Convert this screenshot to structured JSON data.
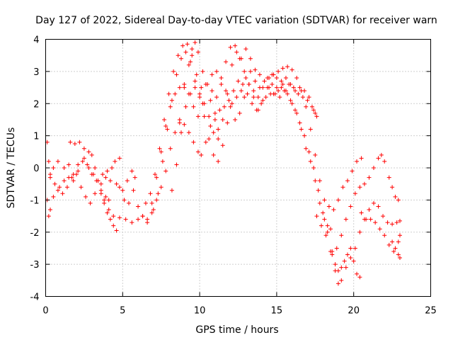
{
  "chart_data": {
    "type": "scatter",
    "title": "Day 127 of 2022, Sidereal Day-to-day VTEC variation (SDTVAR) for receiver warn",
    "xlabel": "GPS time / hours",
    "ylabel": "SDTVAR / TECUs",
    "xlim": [
      0,
      25
    ],
    "ylim": [
      -4,
      4
    ],
    "xticks": [
      0,
      5,
      10,
      15,
      20,
      25
    ],
    "yticks": [
      -4,
      -3,
      -2,
      -1,
      0,
      1,
      2,
      3,
      4
    ],
    "xtick_labels": [
      "0",
      "5",
      "10",
      "15",
      "20",
      "25"
    ],
    "ytick_labels": [
      "-4",
      "-3",
      "-2",
      "-1",
      "0",
      "1",
      "2",
      "3",
      "4"
    ],
    "grid": true,
    "marker": "plus",
    "color": "#ff0000",
    "tracks": [
      [
        [
          0.1,
          0.8
        ],
        [
          0.2,
          0.2
        ],
        [
          0.3,
          -0.3
        ],
        [
          0.5,
          0.0
        ],
        [
          0.8,
          0.2
        ],
        [
          1.2,
          0.0
        ],
        [
          1.5,
          0.1
        ],
        [
          1.8,
          -0.2
        ],
        [
          2.1,
          0.1
        ],
        [
          2.5,
          0.3
        ],
        [
          2.8,
          0.0
        ],
        [
          3.1,
          -0.2
        ],
        [
          3.4,
          -0.4
        ],
        [
          3.7,
          -0.2
        ],
        [
          4.0,
          -0.1
        ],
        [
          4.3,
          0.0
        ],
        [
          4.5,
          0.2
        ],
        [
          4.8,
          0.3
        ]
      ],
      [
        [
          0.1,
          -1.0
        ],
        [
          0.2,
          -1.5
        ],
        [
          0.3,
          -1.3
        ],
        [
          0.5,
          -0.9
        ],
        [
          0.8,
          -0.7
        ],
        [
          1.1,
          -0.8
        ],
        [
          1.4,
          -0.6
        ],
        [
          1.7,
          -0.3
        ],
        [
          2.0,
          -0.2
        ],
        [
          2.3,
          -0.6
        ],
        [
          2.6,
          -0.9
        ],
        [
          2.9,
          -1.1
        ],
        [
          3.2,
          -0.8
        ],
        [
          3.6,
          -0.5
        ],
        [
          3.9,
          -0.3
        ],
        [
          4.2,
          -0.4
        ],
        [
          4.6,
          -0.5
        ],
        [
          5.0,
          -0.7
        ],
        [
          5.3,
          -0.4
        ],
        [
          5.6,
          -0.1
        ],
        [
          5.8,
          -0.3
        ]
      ],
      [
        [
          1.6,
          0.8
        ],
        [
          1.9,
          0.75
        ],
        [
          2.2,
          0.8
        ],
        [
          2.5,
          0.6
        ],
        [
          2.8,
          0.5
        ],
        [
          3.0,
          0.4
        ],
        [
          3.2,
          0.0
        ],
        [
          3.4,
          -0.4
        ],
        [
          3.6,
          -0.8
        ],
        [
          3.8,
          -1.1
        ],
        [
          4.0,
          -1.4
        ],
        [
          4.2,
          -1.6
        ],
        [
          4.4,
          -1.8
        ],
        [
          4.6,
          -1.95
        ]
      ],
      [
        [
          0.3,
          -0.2
        ],
        [
          0.6,
          -0.5
        ],
        [
          0.9,
          -0.6
        ],
        [
          1.2,
          -0.4
        ],
        [
          1.5,
          -0.3
        ],
        [
          1.8,
          -0.4
        ],
        [
          2.1,
          -0.1
        ],
        [
          2.4,
          0.2
        ],
        [
          2.7,
          0.1
        ],
        [
          3.0,
          -0.2
        ],
        [
          3.3,
          -0.4
        ],
        [
          3.6,
          -0.7
        ],
        [
          3.9,
          -0.9
        ],
        [
          4.1,
          -1.0
        ]
      ],
      [
        [
          3.8,
          -1.0
        ],
        [
          4.1,
          -1.3
        ],
        [
          4.4,
          -1.5
        ],
        [
          4.8,
          -1.55
        ],
        [
          5.2,
          -1.6
        ],
        [
          5.6,
          -1.7
        ],
        [
          6.0,
          -1.6
        ],
        [
          6.3,
          -1.5
        ],
        [
          6.6,
          -1.6
        ],
        [
          6.9,
          -1.4
        ],
        [
          7.2,
          -1.0
        ],
        [
          7.5,
          -0.6
        ],
        [
          7.8,
          -0.1
        ],
        [
          8.1,
          0.6
        ],
        [
          8.4,
          1.1
        ],
        [
          8.7,
          1.4
        ],
        [
          9.0,
          1.35
        ],
        [
          9.3,
          1.1
        ],
        [
          9.6,
          0.8
        ],
        [
          9.9,
          0.5
        ],
        [
          10.1,
          0.4
        ],
        [
          10.4,
          0.8
        ],
        [
          10.7,
          1.3
        ],
        [
          11.0,
          1.7
        ],
        [
          11.3,
          1.8
        ],
        [
          11.6,
          1.9
        ],
        [
          11.9,
          2.1
        ],
        [
          12.2,
          2.4
        ],
        [
          12.5,
          2.7
        ],
        [
          12.8,
          2.6
        ],
        [
          13.1,
          2.3
        ],
        [
          13.4,
          2.0
        ],
        [
          13.7,
          1.8
        ],
        [
          14.0,
          2.0
        ],
        [
          14.3,
          2.2
        ],
        [
          14.6,
          2.3
        ],
        [
          14.9,
          2.3
        ],
        [
          15.2,
          2.2
        ],
        [
          15.5,
          2.4
        ],
        [
          15.8,
          2.6
        ],
        [
          16.1,
          2.5
        ],
        [
          16.4,
          2.3
        ],
        [
          16.7,
          2.2
        ],
        [
          17.0,
          2.1
        ],
        [
          17.3,
          1.9
        ],
        [
          17.5,
          1.7
        ]
      ],
      [
        [
          4.8,
          -0.6
        ],
        [
          5.1,
          -1.0
        ],
        [
          5.4,
          -1.1
        ],
        [
          5.7,
          -0.7
        ],
        [
          6.0,
          -1.2
        ],
        [
          6.3,
          -1.5
        ],
        [
          6.6,
          -1.7
        ],
        [
          6.9,
          -1.1
        ],
        [
          7.2,
          -0.3
        ],
        [
          7.5,
          0.5
        ],
        [
          7.8,
          1.3
        ],
        [
          8.1,
          1.9
        ],
        [
          8.4,
          2.3
        ],
        [
          8.7,
          2.5
        ],
        [
          9.0,
          2.6
        ],
        [
          9.3,
          2.3
        ],
        [
          9.6,
          1.9
        ],
        [
          9.9,
          1.6
        ],
        [
          10.2,
          2.0
        ],
        [
          10.5,
          2.6
        ],
        [
          10.8,
          2.9
        ],
        [
          11.1,
          3.0
        ],
        [
          11.4,
          2.8
        ],
        [
          11.7,
          2.4
        ],
        [
          12.0,
          1.9
        ],
        [
          12.3,
          1.5
        ],
        [
          12.6,
          1.7
        ],
        [
          12.9,
          2.2
        ],
        [
          13.2,
          2.6
        ],
        [
          13.5,
          2.4
        ],
        [
          13.8,
          2.2
        ],
        [
          14.1,
          2.5
        ],
        [
          14.4,
          2.8
        ],
        [
          14.7,
          2.9
        ],
        [
          15.0,
          2.8
        ],
        [
          15.3,
          2.5
        ],
        [
          15.6,
          2.4
        ],
        [
          15.9,
          2.1
        ],
        [
          16.2,
          1.8
        ],
        [
          16.5,
          1.4
        ],
        [
          16.8,
          1.0
        ],
        [
          17.1,
          0.5
        ],
        [
          17.4,
          0.0
        ],
        [
          17.7,
          -0.7
        ],
        [
          18.0,
          -1.4
        ],
        [
          18.3,
          -2.0
        ],
        [
          18.6,
          -2.6
        ],
        [
          18.8,
          -3.0
        ],
        [
          19.0,
          -3.2
        ],
        [
          19.2,
          -3.1
        ],
        [
          19.4,
          -2.9
        ],
        [
          19.6,
          -2.7
        ],
        [
          19.8,
          -2.5
        ],
        [
          20.0,
          -2.9
        ],
        [
          20.2,
          -3.3
        ],
        [
          20.4,
          -3.4
        ]
      ],
      [
        [
          6.5,
          -1.1
        ],
        [
          6.8,
          -0.8
        ],
        [
          7.1,
          -0.2
        ],
        [
          7.4,
          0.6
        ],
        [
          7.7,
          1.5
        ],
        [
          8.0,
          2.3
        ],
        [
          8.3,
          3.0
        ],
        [
          8.6,
          3.5
        ],
        [
          8.9,
          3.8
        ],
        [
          9.2,
          3.85
        ],
        [
          9.5,
          3.5
        ],
        [
          9.8,
          2.9
        ],
        [
          10.1,
          2.5
        ],
        [
          10.4,
          2.6
        ],
        [
          10.7,
          2.1
        ],
        [
          11.0,
          1.5
        ],
        [
          11.2,
          1.2
        ]
      ],
      [
        [
          7.0,
          -1.3
        ],
        [
          7.3,
          -0.8
        ],
        [
          7.6,
          0.2
        ],
        [
          7.9,
          1.2
        ],
        [
          8.2,
          2.1
        ],
        [
          8.5,
          2.9
        ],
        [
          8.8,
          3.4
        ],
        [
          9.1,
          3.6
        ],
        [
          9.4,
          3.3
        ],
        [
          9.7,
          2.7
        ],
        [
          10.0,
          2.3
        ],
        [
          10.3,
          2.0
        ],
        [
          10.6,
          1.6
        ],
        [
          10.9,
          1.1
        ],
        [
          11.2,
          0.9
        ],
        [
          11.5,
          1.5
        ],
        [
          11.8,
          2.3
        ],
        [
          12.1,
          3.2
        ],
        [
          12.4,
          3.6
        ],
        [
          12.7,
          3.4
        ],
        [
          13.0,
          3.7
        ],
        [
          13.3,
          3.4
        ],
        [
          13.6,
          2.7
        ],
        [
          13.9,
          2.5
        ],
        [
          14.2,
          2.7
        ],
        [
          14.5,
          2.5
        ],
        [
          14.8,
          2.3
        ],
        [
          15.1,
          2.4
        ],
        [
          15.4,
          2.6
        ],
        [
          15.7,
          2.3
        ],
        [
          16.0,
          2.0
        ],
        [
          16.3,
          1.7
        ],
        [
          16.6,
          1.2
        ],
        [
          16.9,
          0.6
        ],
        [
          17.2,
          0.2
        ],
        [
          17.5,
          -0.4
        ],
        [
          17.8,
          -1.1
        ],
        [
          18.1,
          -1.6
        ],
        [
          18.3,
          -1.8
        ],
        [
          18.5,
          -1.9
        ]
      ],
      [
        [
          8.2,
          -0.7
        ],
        [
          8.5,
          0.1
        ],
        [
          8.8,
          1.1
        ],
        [
          9.1,
          1.9
        ],
        [
          9.4,
          2.3
        ],
        [
          9.7,
          2.5
        ],
        [
          10.0,
          2.2
        ],
        [
          10.3,
          1.6
        ],
        [
          10.6,
          0.9
        ],
        [
          10.9,
          0.4
        ],
        [
          11.2,
          0.2
        ],
        [
          11.5,
          0.7
        ],
        [
          11.8,
          1.4
        ],
        [
          12.1,
          2.0
        ],
        [
          12.4,
          2.2
        ],
        [
          12.7,
          2.4
        ],
        [
          13.0,
          2.8
        ],
        [
          13.3,
          3.0
        ],
        [
          13.6,
          3.05
        ],
        [
          13.9,
          2.9
        ],
        [
          14.2,
          2.7
        ],
        [
          14.5,
          2.8
        ],
        [
          14.8,
          2.9
        ],
        [
          15.1,
          3.0
        ],
        [
          15.4,
          3.1
        ],
        [
          15.7,
          3.15
        ],
        [
          16.0,
          3.05
        ],
        [
          16.3,
          2.8
        ],
        [
          16.6,
          2.4
        ],
        [
          16.9,
          1.9
        ],
        [
          17.2,
          1.2
        ],
        [
          17.5,
          0.4
        ],
        [
          17.8,
          -0.4
        ],
        [
          18.1,
          -1.0
        ],
        [
          18.4,
          -1.2
        ],
        [
          18.7,
          -1.3
        ],
        [
          19.0,
          -1.0
        ],
        [
          19.3,
          -0.6
        ],
        [
          19.6,
          -0.4
        ],
        [
          19.9,
          -0.1
        ],
        [
          20.2,
          0.2
        ],
        [
          20.5,
          0.3
        ]
      ],
      [
        [
          8.7,
          1.5
        ],
        [
          9.0,
          2.5
        ],
        [
          9.3,
          3.2
        ],
        [
          9.5,
          3.7
        ],
        [
          9.7,
          3.9
        ],
        [
          9.9,
          3.6
        ],
        [
          10.2,
          3.0
        ],
        [
          10.5,
          2.6
        ],
        [
          10.8,
          2.4
        ],
        [
          11.1,
          2.2
        ],
        [
          11.4,
          2.6
        ],
        [
          11.7,
          3.3
        ],
        [
          12.0,
          3.75
        ],
        [
          12.3,
          3.8
        ],
        [
          12.6,
          3.4
        ],
        [
          12.9,
          3.0
        ],
        [
          13.2,
          2.6
        ],
        [
          13.5,
          2.2
        ],
        [
          13.8,
          1.8
        ],
        [
          14.1,
          2.1
        ],
        [
          14.4,
          2.5
        ],
        [
          14.7,
          2.6
        ],
        [
          15.0,
          2.5
        ],
        [
          15.3,
          2.7
        ],
        [
          15.6,
          2.8
        ],
        [
          15.9,
          2.6
        ],
        [
          16.2,
          2.4
        ],
        [
          16.5,
          2.5
        ],
        [
          16.8,
          2.4
        ],
        [
          17.1,
          2.2
        ],
        [
          17.4,
          1.8
        ],
        [
          17.6,
          1.6
        ]
      ],
      [
        [
          17.6,
          -1.5
        ],
        [
          17.9,
          -1.8
        ],
        [
          18.2,
          -2.1
        ],
        [
          18.5,
          -2.6
        ],
        [
          18.8,
          -3.2
        ],
        [
          19.0,
          -3.6
        ],
        [
          19.2,
          -3.5
        ],
        [
          19.5,
          -3.1
        ],
        [
          19.8,
          -2.8
        ],
        [
          20.1,
          -2.5
        ],
        [
          20.4,
          -2.0
        ],
        [
          20.7,
          -1.6
        ],
        [
          21.0,
          -1.3
        ],
        [
          21.3,
          -1.1
        ],
        [
          21.6,
          -1.2
        ],
        [
          21.9,
          -1.5
        ],
        [
          22.2,
          -1.7
        ],
        [
          22.5,
          -1.75
        ],
        [
          22.8,
          -1.7
        ],
        [
          23.0,
          -1.65
        ]
      ],
      [
        [
          18.6,
          -2.7
        ],
        [
          18.9,
          -2.5
        ],
        [
          19.2,
          -2.1
        ],
        [
          19.5,
          -1.6
        ],
        [
          19.8,
          -1.2
        ],
        [
          20.1,
          -0.8
        ],
        [
          20.4,
          -0.6
        ],
        [
          20.7,
          -0.5
        ],
        [
          21.0,
          -0.3
        ],
        [
          21.3,
          0.0
        ],
        [
          21.6,
          0.3
        ],
        [
          21.8,
          0.4
        ],
        [
          22.0,
          0.2
        ]
      ],
      [
        [
          20.5,
          -1.4
        ],
        [
          20.8,
          -1.6
        ],
        [
          21.1,
          -1.6
        ],
        [
          21.4,
          -1.7
        ],
        [
          21.7,
          -1.9
        ],
        [
          22.0,
          -2.1
        ],
        [
          22.3,
          -2.4
        ],
        [
          22.6,
          -2.6
        ],
        [
          22.9,
          -2.7
        ],
        [
          23.0,
          -2.8
        ]
      ],
      [
        [
          22.3,
          -0.3
        ],
        [
          22.5,
          -0.6
        ],
        [
          22.7,
          -0.9
        ],
        [
          22.9,
          -1.0
        ]
      ],
      [
        [
          22.5,
          -2.3
        ],
        [
          22.7,
          -2.5
        ],
        [
          22.9,
          -2.3
        ],
        [
          23.0,
          -2.1
        ]
      ]
    ]
  }
}
